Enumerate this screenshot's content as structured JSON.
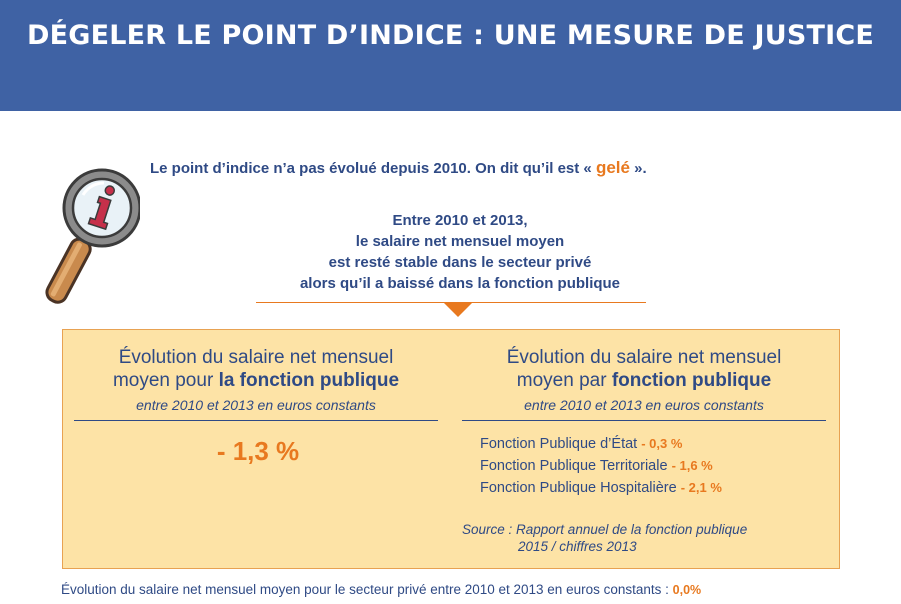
{
  "header": {
    "title": "DÉGELER LE POINT D’INDICE : UNE MESURE DE JUSTICE"
  },
  "intro": {
    "text_before": "Le point d’indice n’a pas évolué depuis 2010. On dit qu’il est «",
    "highlight": "gelé",
    "text_after": "»."
  },
  "summary": {
    "lines": [
      "Entre 2010 et 2013,",
      "le salaire net mensuel moyen",
      "est resté stable dans le secteur privé",
      "alors qu’il a baissé dans la fonction publique"
    ]
  },
  "left_column": {
    "title_line1": "Évolution du salaire net mensuel",
    "title_line2_prefix": "moyen pour",
    "title_line2_bold": "la fonction publique",
    "subtitle": "entre 2010 et 2013 en euros constants",
    "value": "- 1,3 %"
  },
  "right_column": {
    "title_line1": "Évolution du salaire net mensuel",
    "title_line2_prefix": "moyen par",
    "title_line2_bold": "fonction publique",
    "subtitle": "entre 2010 et 2013 en euros constants",
    "items": [
      {
        "label": "Fonction Publique d’État",
        "value": "- 0,3 %"
      },
      {
        "label": "Fonction Publique Territoriale",
        "value": "- 1,6 %"
      },
      {
        "label": "Fonction Publique Hospitalière",
        "value": "- 2,1 %"
      }
    ],
    "source_line1": "Source : Rapport annuel de la fonction publique",
    "source_line2": "2015 / chiffres 2013"
  },
  "footnote": {
    "text": "Évolution du salaire net mensuel moyen pour le secteur privé entre 2010 et 2013 en euros constants :",
    "value": "0,0%"
  },
  "icons": {
    "magnifier": "magnifying-glass-info-icon"
  },
  "colors": {
    "banner": "#3f62a4",
    "text": "#2f4a85",
    "accent": "#e8791f",
    "panel": "#fde3a6"
  }
}
